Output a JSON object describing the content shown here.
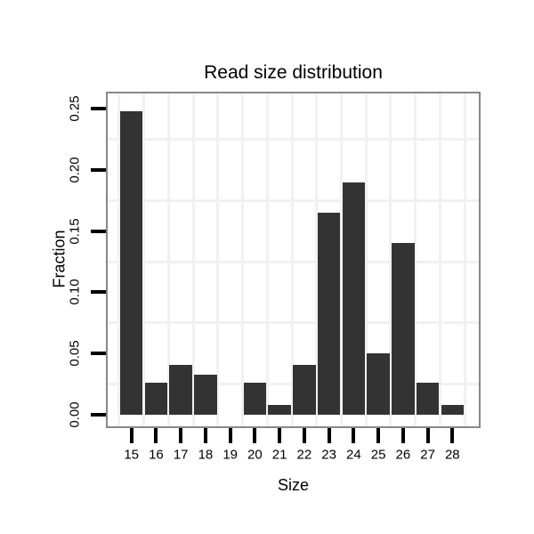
{
  "chart": {
    "title": "Read size distribution",
    "xlabel": "Size",
    "ylabel": "Fraction"
  },
  "chart_data": {
    "type": "bar",
    "title": "Read size distribution",
    "xlabel": "Size",
    "ylabel": "Fraction",
    "categories": [
      "15",
      "16",
      "17",
      "18",
      "19",
      "20",
      "21",
      "22",
      "23",
      "24",
      "25",
      "26",
      "27",
      "28"
    ],
    "values": [
      0.248,
      0.026,
      0.041,
      0.033,
      0,
      0.026,
      0.008,
      0.041,
      0.165,
      0.19,
      0.05,
      0.14,
      0.026,
      0.008
    ],
    "y_ticks": [
      0,
      0.05,
      0.1,
      0.15,
      0.2,
      0.25
    ],
    "y_tick_labels": [
      "0.00",
      "0.05",
      "0.10",
      "0.15",
      "0.20",
      "0.25"
    ],
    "ylim": [
      -0.009,
      0.262
    ],
    "grid": "minor-horizontal-and-category-boundaries",
    "minor_grid_values": [
      0.025,
      0.075,
      0.125,
      0.175,
      0.225
    ],
    "legend": "none",
    "colors": {
      "bar": "#333333",
      "panel_border": "#878787",
      "gridline": "#f1f1f1",
      "tick": "#000000",
      "text": "#000000",
      "background": "#ffffff"
    }
  }
}
